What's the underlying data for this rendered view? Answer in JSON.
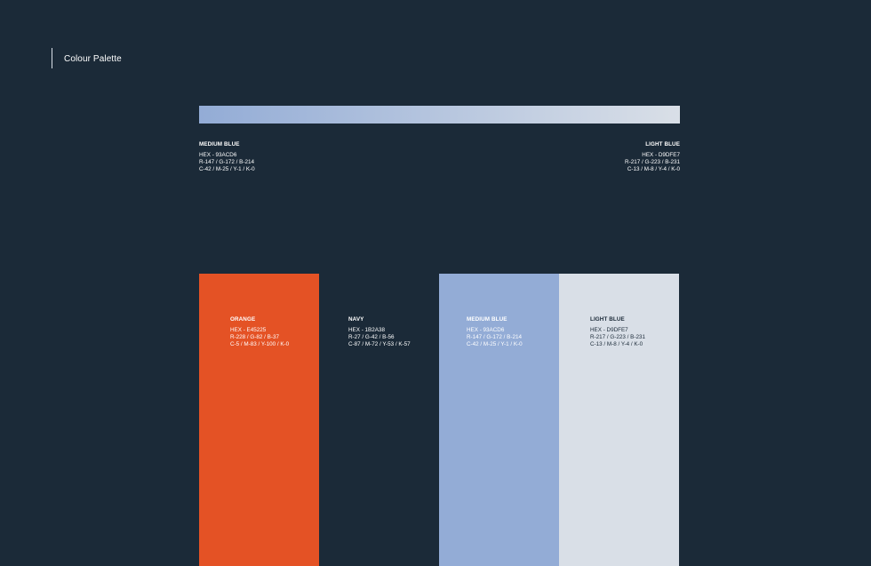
{
  "page": {
    "title": "Colour Palette"
  },
  "gradient": {
    "start_color": "#93ACD6",
    "end_color": "#D9DFE7",
    "left": {
      "name": "MEDIUM BLUE",
      "hex": "HEX - 93ACD6",
      "rgb": "R-147 / G-172 / B-214",
      "cmyk": "C-42 / M-25 / Y-1 / K-0"
    },
    "right": {
      "name": "LIGHT BLUE",
      "hex": "HEX - D9DFE7",
      "rgb": "R-217 / G-223 / B-231",
      "cmyk": "C-13 / M-8 / Y-4 / K-0"
    }
  },
  "swatches": [
    {
      "name": "ORANGE",
      "hex": "HEX - E45225",
      "rgb": "R-228 / G-82 / B-37",
      "cmyk": "C-5 / M-83 / Y-100 / K-0",
      "color": "#E45225",
      "text_color": "#FFFFFF"
    },
    {
      "name": "NAVY",
      "hex": "HEX - 1B2A38",
      "rgb": "R-27 / G-42 / B-56",
      "cmyk": "C-87 / M-72 / Y-53 / K-57",
      "color": "#1B2A38",
      "text_color": "#FFFFFF"
    },
    {
      "name": "MEDIUM BLUE",
      "hex": "HEX - 93ACD6",
      "rgb": "R-147 / G-172 / B-214",
      "cmyk": "C-42 / M-25 / Y-1 / K-0",
      "color": "#93ACD6",
      "text_color": "#FFFFFF"
    },
    {
      "name": "LIGHT BLUE",
      "hex": "HEX - D9DFE7",
      "rgb": "R-217 / G-223 / B-231",
      "cmyk": "C-13 / M-8 / Y-4 / K-0",
      "color": "#D9DFE7",
      "text_color": "#1B2A38"
    }
  ]
}
